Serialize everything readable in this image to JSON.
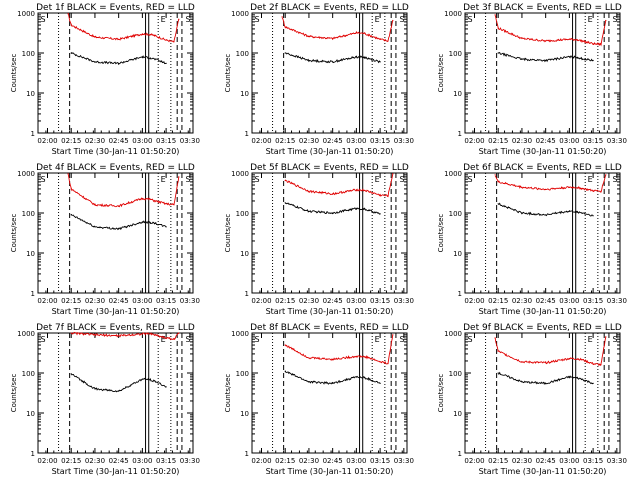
{
  "figure": {
    "start_label": "Start Time (30-Jan-11 01:50:20)",
    "ylabel": "Counts/sec",
    "ytick_labels": [
      "1",
      "10",
      "100",
      "1000"
    ],
    "xtick_labels": [
      "02:00",
      "02:15",
      "02:30",
      "02:45",
      "03:00",
      "03:15",
      "03:30"
    ],
    "marker_labels": [
      "S",
      "E",
      "S"
    ]
  },
  "chart_data": [
    {
      "type": "line",
      "title": "Det 1f BLACK = Events, RED = LLD",
      "xlabel": "Start Time (30-Jan-11 01:50:20)",
      "ylabel": "Counts/sec",
      "yscale": "log",
      "ylim": [
        1,
        1000
      ],
      "x": [
        "02:13",
        "02:15",
        "02:30",
        "02:45",
        "03:00",
        "03:05",
        "03:08",
        "03:15",
        "03:20",
        "03:23"
      ],
      "series": [
        {
          "name": "RED",
          "color": "#e00000",
          "values": [
            950,
            500,
            250,
            220,
            300,
            290,
            270,
            210,
            190,
            700
          ]
        },
        {
          "name": "BLACK",
          "color": "#000000",
          "values": [
            null,
            100,
            60,
            55,
            80,
            75,
            70,
            55,
            null,
            null
          ]
        }
      ]
    },
    {
      "type": "line",
      "title": "Det 2f BLACK = Events, RED = LLD",
      "xlabel": "Start Time (30-Jan-11 01:50:20)",
      "ylabel": "Counts/sec",
      "yscale": "log",
      "ylim": [
        1,
        1000
      ],
      "x": [
        "02:13",
        "02:15",
        "02:30",
        "02:45",
        "03:00",
        "03:05",
        "03:08",
        "03:15",
        "03:20",
        "03:23"
      ],
      "series": [
        {
          "name": "RED",
          "color": "#e00000",
          "values": [
            800,
            450,
            260,
            230,
            320,
            310,
            280,
            220,
            200,
            650
          ]
        },
        {
          "name": "BLACK",
          "color": "#000000",
          "values": [
            null,
            100,
            65,
            60,
            80,
            78,
            72,
            60,
            null,
            null
          ]
        }
      ]
    },
    {
      "type": "line",
      "title": "Det 3f BLACK = Events, RED = LLD",
      "xlabel": "Start Time (30-Jan-11 01:50:20)",
      "ylabel": "Counts/sec",
      "yscale": "log",
      "ylim": [
        1,
        1000
      ],
      "x": [
        "02:13",
        "02:15",
        "02:30",
        "02:45",
        "03:00",
        "03:05",
        "03:08",
        "03:15",
        "03:20",
        "03:23"
      ],
      "series": [
        {
          "name": "RED",
          "color": "#e00000",
          "values": [
            900,
            420,
            230,
            200,
            220,
            215,
            200,
            170,
            165,
            650
          ]
        },
        {
          "name": "BLACK",
          "color": "#000000",
          "values": [
            null,
            100,
            70,
            65,
            80,
            78,
            72,
            65,
            null,
            null
          ]
        }
      ]
    },
    {
      "type": "line",
      "title": "Det 4f BLACK = Events, RED = LLD",
      "xlabel": "Start Time (30-Jan-11 01:50:20)",
      "ylabel": "Counts/sec",
      "yscale": "log",
      "ylim": [
        1,
        1000
      ],
      "x": [
        "02:13",
        "02:15",
        "02:30",
        "02:45",
        "03:00",
        "03:05",
        "03:08",
        "03:15",
        "03:20",
        "03:23"
      ],
      "series": [
        {
          "name": "RED",
          "color": "#e00000",
          "values": [
            950,
            400,
            160,
            150,
            230,
            220,
            200,
            170,
            160,
            800
          ]
        },
        {
          "name": "BLACK",
          "color": "#000000",
          "values": [
            null,
            90,
            45,
            40,
            60,
            58,
            55,
            45,
            null,
            null
          ]
        }
      ]
    },
    {
      "type": "line",
      "title": "Det 5f BLACK = Events, RED = LLD",
      "xlabel": "Start Time (30-Jan-11 01:50:20)",
      "ylabel": "Counts/sec",
      "yscale": "log",
      "ylim": [
        1,
        1000
      ],
      "x": [
        "02:13",
        "02:15",
        "02:30",
        "02:45",
        "03:00",
        "03:05",
        "03:08",
        "03:15",
        "03:20",
        "03:23"
      ],
      "series": [
        {
          "name": "RED",
          "color": "#e00000",
          "values": [
            null,
            650,
            350,
            300,
            380,
            370,
            340,
            280,
            270,
            950
          ]
        },
        {
          "name": "BLACK",
          "color": "#000000",
          "values": [
            null,
            180,
            110,
            100,
            130,
            125,
            115,
            95,
            null,
            null
          ]
        }
      ]
    },
    {
      "type": "line",
      "title": "Det 6f BLACK = Events, RED = LLD",
      "xlabel": "Start Time (30-Jan-11 01:50:20)",
      "ylabel": "Counts/sec",
      "yscale": "log",
      "ylim": [
        1,
        1000
      ],
      "x": [
        "02:13",
        "02:15",
        "02:30",
        "02:45",
        "03:00",
        "03:05",
        "03:08",
        "03:15",
        "03:20",
        "03:23"
      ],
      "series": [
        {
          "name": "RED",
          "color": "#e00000",
          "values": [
            900,
            600,
            440,
            390,
            440,
            430,
            410,
            360,
            350,
            900
          ]
        },
        {
          "name": "BLACK",
          "color": "#000000",
          "values": [
            null,
            170,
            100,
            90,
            110,
            105,
            100,
            85,
            null,
            null
          ]
        }
      ]
    },
    {
      "type": "line",
      "title": "Det 7f BLACK = Events, RED = LLD",
      "xlabel": "Start Time (30-Jan-11 01:50:20)",
      "ylabel": "Counts/sec",
      "yscale": "log",
      "ylim": [
        1,
        1000
      ],
      "x": [
        "02:13",
        "02:15",
        "02:30",
        "02:45",
        "03:00",
        "03:05",
        "03:08",
        "03:15",
        "03:20",
        "03:23"
      ],
      "series": [
        {
          "name": "RED",
          "color": "#e00000",
          "values": [
            null,
            1000,
            900,
            850,
            950,
            960,
            900,
            750,
            700,
            1000
          ]
        },
        {
          "name": "BLACK",
          "color": "#000000",
          "values": [
            null,
            95,
            40,
            35,
            70,
            68,
            62,
            45,
            null,
            null
          ]
        }
      ]
    },
    {
      "type": "line",
      "title": "Det 8f BLACK = Events, RED = LLD",
      "xlabel": "Start Time (30-Jan-11 01:50:20)",
      "ylabel": "Counts/sec",
      "yscale": "log",
      "ylim": [
        1,
        1000
      ],
      "x": [
        "02:13",
        "02:15",
        "02:30",
        "02:45",
        "03:00",
        "03:05",
        "03:08",
        "03:15",
        "03:20",
        "03:23"
      ],
      "series": [
        {
          "name": "RED",
          "color": "#e00000",
          "values": [
            null,
            500,
            240,
            220,
            260,
            255,
            240,
            190,
            175,
            900
          ]
        },
        {
          "name": "BLACK",
          "color": "#000000",
          "values": [
            null,
            110,
            60,
            55,
            80,
            76,
            70,
            55,
            null,
            null
          ]
        }
      ]
    },
    {
      "type": "line",
      "title": "Det 9f BLACK = Events, RED = LLD",
      "xlabel": "Start Time (30-Jan-11 01:50:20)",
      "ylabel": "Counts/sec",
      "yscale": "log",
      "ylim": [
        1,
        1000
      ],
      "x": [
        "02:13",
        "02:15",
        "02:30",
        "02:45",
        "03:00",
        "03:05",
        "03:08",
        "03:15",
        "03:20",
        "03:23"
      ],
      "series": [
        {
          "name": "RED",
          "color": "#e00000",
          "values": [
            750,
            350,
            190,
            180,
            230,
            225,
            215,
            170,
            160,
            800
          ]
        },
        {
          "name": "BLACK",
          "color": "#000000",
          "values": [
            null,
            100,
            60,
            55,
            80,
            75,
            70,
            55,
            null,
            null
          ]
        }
      ]
    }
  ]
}
